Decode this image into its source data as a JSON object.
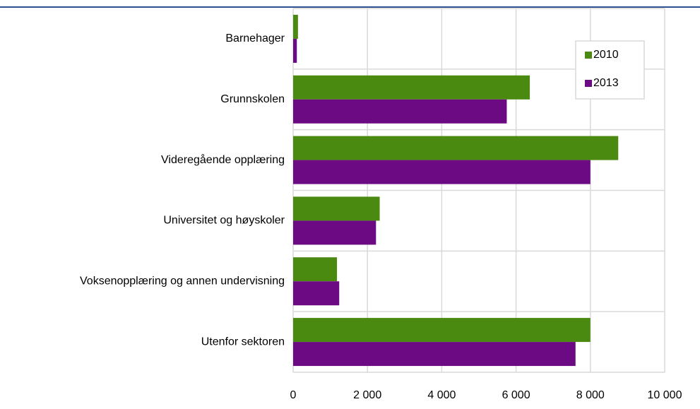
{
  "chart_data": {
    "type": "hbar",
    "categories": [
      "Barnehager",
      "Grunnskolen",
      "Videregående opplæring",
      "Universitet og høyskoler",
      "Voksenopplæring og annen undervisning",
      "Utenfor sektoren"
    ],
    "series": [
      {
        "name": "2010",
        "color": "#4a8a10",
        "values": [
          130,
          6370,
          8750,
          2330,
          1180,
          8000
        ]
      },
      {
        "name": "2013",
        "color": "#6c0a84",
        "values": [
          100,
          5750,
          8000,
          2230,
          1240,
          7600
        ]
      }
    ],
    "xlim": [
      0,
      10000
    ],
    "xticks": [
      0,
      {
        "value": 2000,
        "label": "2 000"
      },
      {
        "value": 4000,
        "label": "4 000"
      },
      {
        "value": 6000,
        "label": "6 000"
      },
      {
        "value": 8000,
        "label": "8 000"
      },
      {
        "value": 10000,
        "label": "10 000"
      }
    ],
    "grid": true,
    "legend": "upper right"
  }
}
